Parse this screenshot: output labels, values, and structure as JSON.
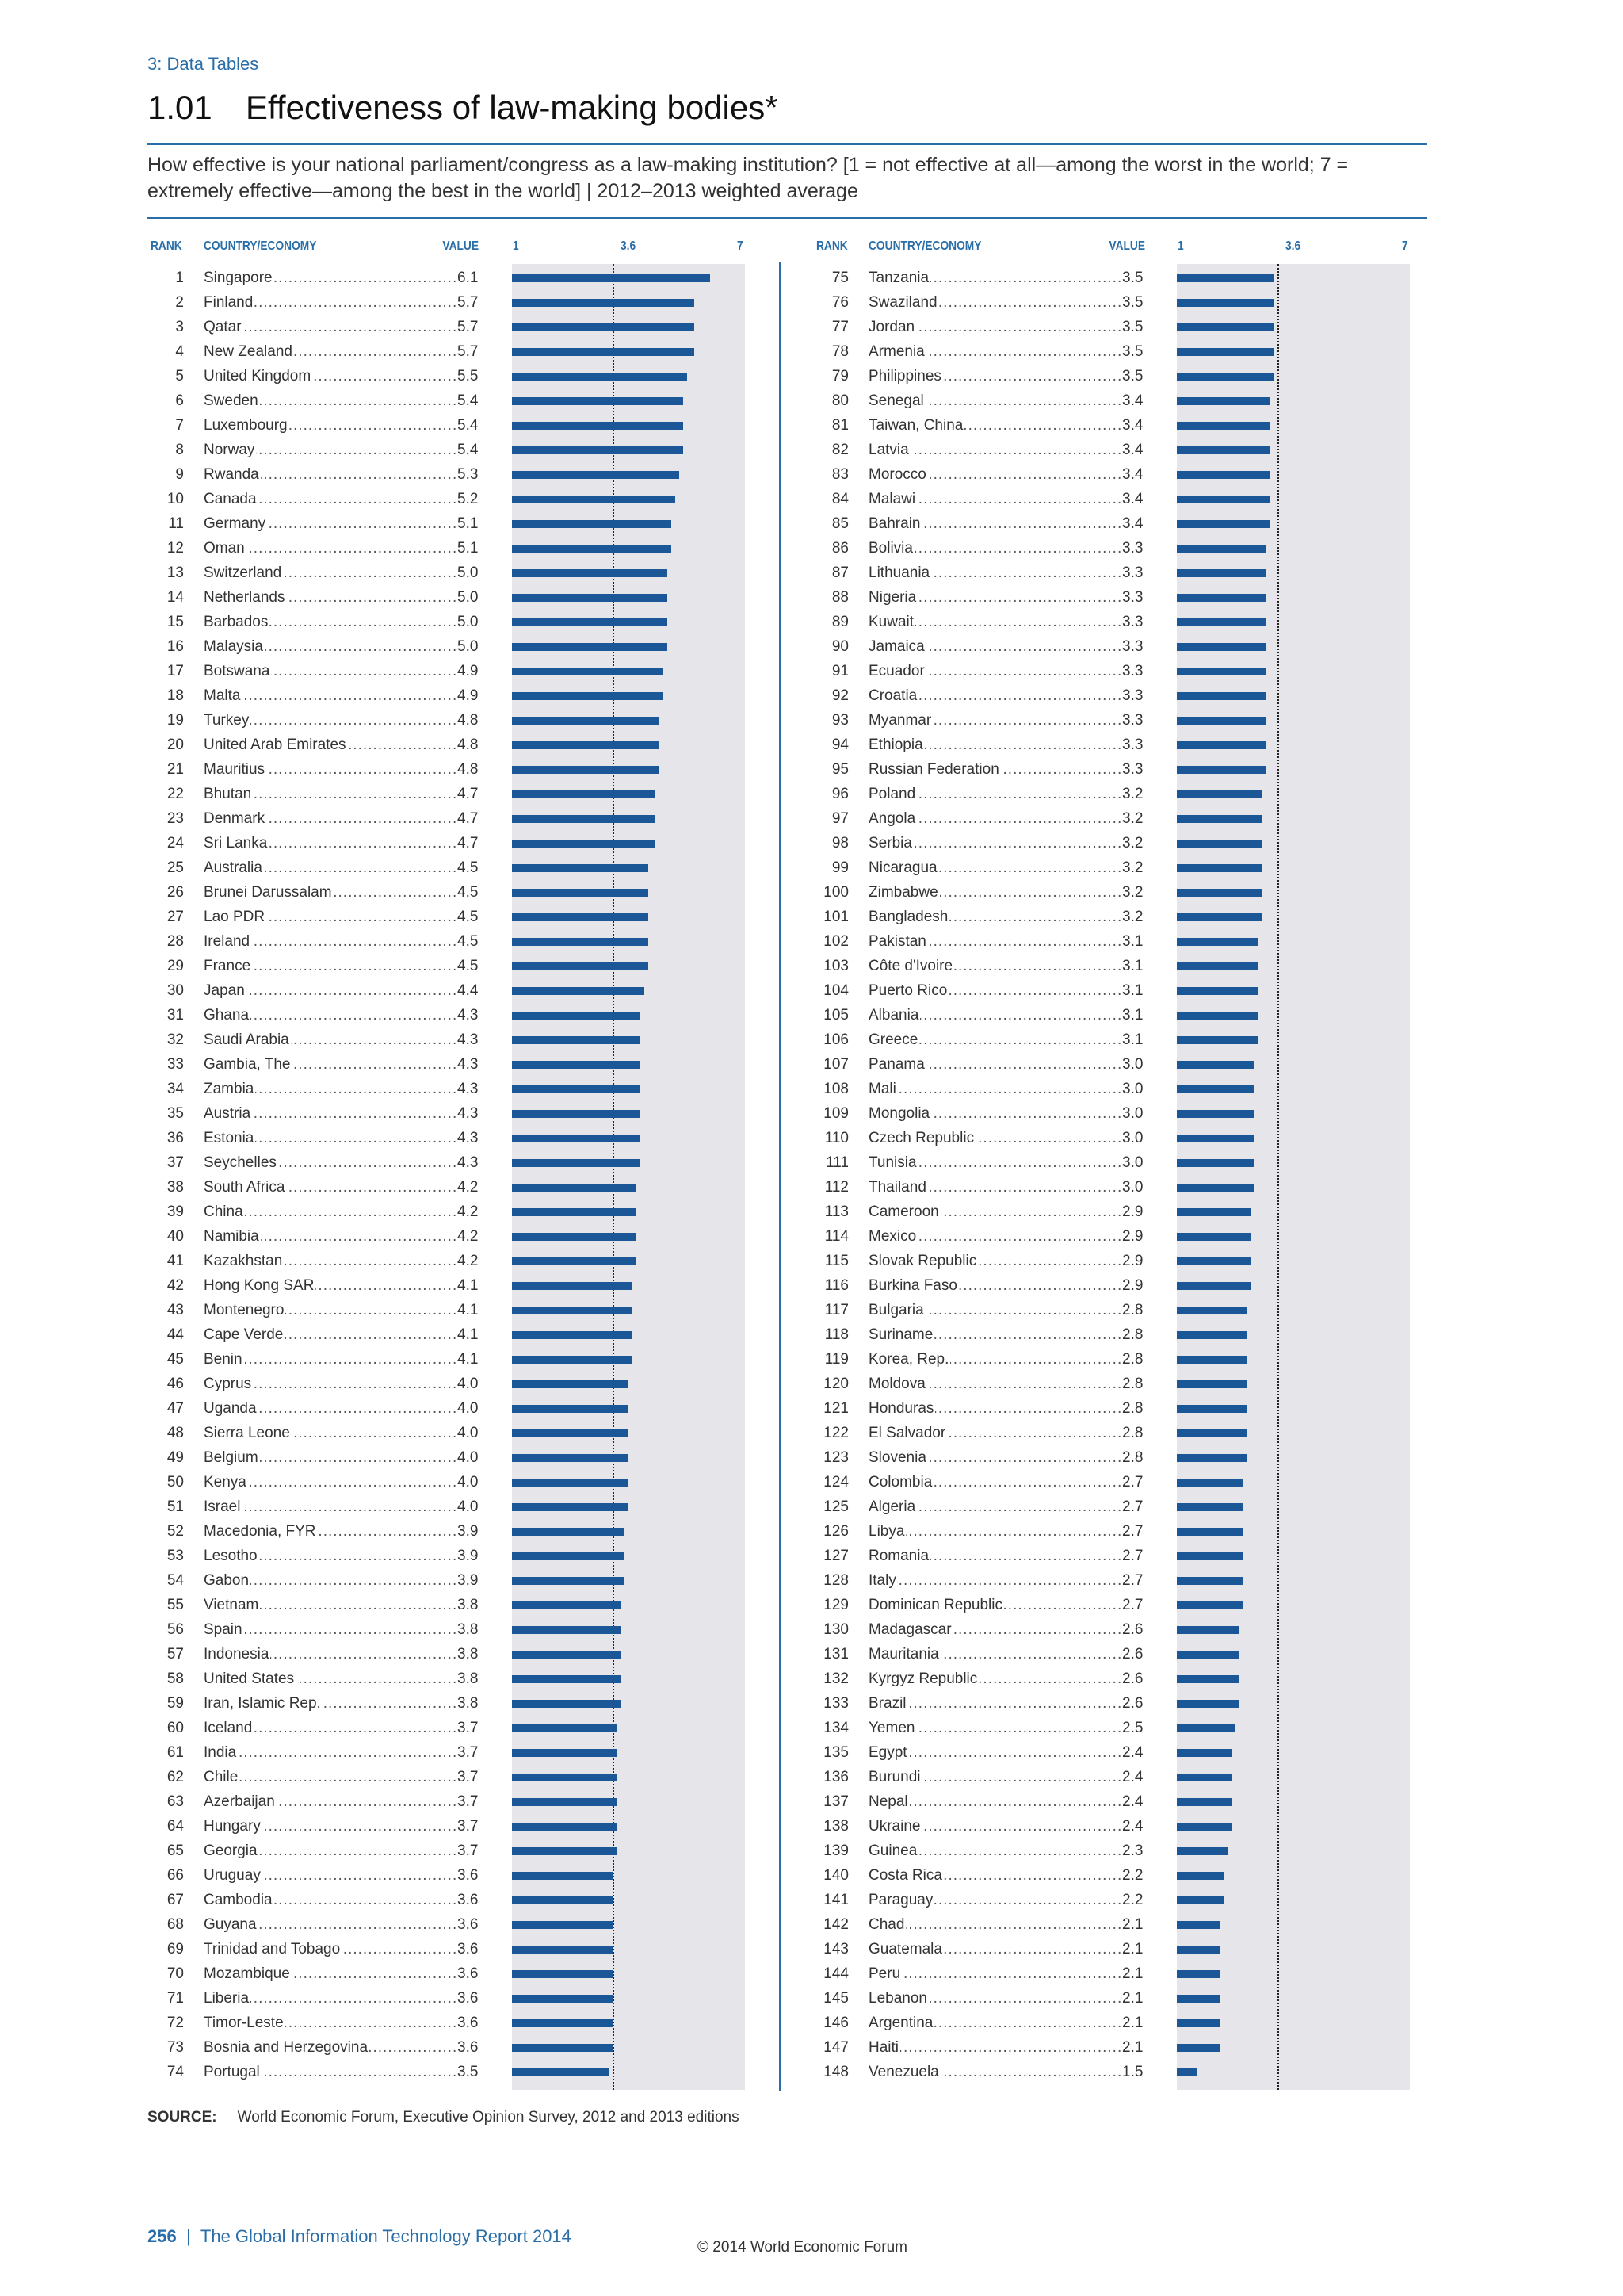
{
  "header": {
    "section": "3: Data Tables",
    "number": "1.01",
    "title": "Effectiveness of law-making bodies*",
    "question": "How effective is your national parliament/congress as a law-making institution? [1 = not effective at all—among the worst in the world; 7 = extremely effective—among the best in the world] | 2012–2013 weighted average"
  },
  "columns": {
    "rank": "RANK",
    "country": "COUNTRY/ECONOMY",
    "value": "VALUE",
    "scale_min": "1",
    "scale_mid": "3.6",
    "scale_max": "7"
  },
  "chart_data": {
    "type": "bar",
    "orientation": "horizontal",
    "xlim": [
      1,
      7
    ],
    "reference_value": 3.6,
    "colors": {
      "bar": "#1b5696",
      "panel": "#e6e6ea",
      "accent": "#2a6ea8"
    },
    "rows": [
      {
        "rank": "1",
        "country": "Singapore",
        "value": 6.1
      },
      {
        "rank": "2",
        "country": "Finland",
        "value": 5.7
      },
      {
        "rank": "3",
        "country": "Qatar",
        "value": 5.7
      },
      {
        "rank": "4",
        "country": "New Zealand",
        "value": 5.7
      },
      {
        "rank": "5",
        "country": "United Kingdom",
        "value": 5.5
      },
      {
        "rank": "6",
        "country": "Sweden",
        "value": 5.4
      },
      {
        "rank": "7",
        "country": "Luxembourg",
        "value": 5.4
      },
      {
        "rank": "8",
        "country": "Norway",
        "value": 5.4
      },
      {
        "rank": "9",
        "country": "Rwanda",
        "value": 5.3
      },
      {
        "rank": "10",
        "country": "Canada",
        "value": 5.2
      },
      {
        "rank": "11",
        "country": "Germany",
        "value": 5.1
      },
      {
        "rank": "12",
        "country": "Oman",
        "value": 5.1
      },
      {
        "rank": "13",
        "country": "Switzerland",
        "value": 5.0
      },
      {
        "rank": "14",
        "country": "Netherlands",
        "value": 5.0
      },
      {
        "rank": "15",
        "country": "Barbados",
        "value": 5.0
      },
      {
        "rank": "16",
        "country": "Malaysia",
        "value": 5.0
      },
      {
        "rank": "17",
        "country": "Botswana",
        "value": 4.9
      },
      {
        "rank": "18",
        "country": "Malta",
        "value": 4.9
      },
      {
        "rank": "19",
        "country": "Turkey",
        "value": 4.8
      },
      {
        "rank": "20",
        "country": "United Arab Emirates",
        "value": 4.8
      },
      {
        "rank": "21",
        "country": "Mauritius",
        "value": 4.8
      },
      {
        "rank": "22",
        "country": "Bhutan",
        "value": 4.7
      },
      {
        "rank": "23",
        "country": "Denmark",
        "value": 4.7
      },
      {
        "rank": "24",
        "country": "Sri Lanka",
        "value": 4.7
      },
      {
        "rank": "25",
        "country": "Australia",
        "value": 4.5
      },
      {
        "rank": "26",
        "country": "Brunei Darussalam",
        "value": 4.5
      },
      {
        "rank": "27",
        "country": "Lao PDR",
        "value": 4.5
      },
      {
        "rank": "28",
        "country": "Ireland",
        "value": 4.5
      },
      {
        "rank": "29",
        "country": "France",
        "value": 4.5
      },
      {
        "rank": "30",
        "country": "Japan",
        "value": 4.4
      },
      {
        "rank": "31",
        "country": "Ghana",
        "value": 4.3
      },
      {
        "rank": "32",
        "country": "Saudi Arabia",
        "value": 4.3
      },
      {
        "rank": "33",
        "country": "Gambia, The",
        "value": 4.3
      },
      {
        "rank": "34",
        "country": "Zambia",
        "value": 4.3
      },
      {
        "rank": "35",
        "country": "Austria",
        "value": 4.3
      },
      {
        "rank": "36",
        "country": "Estonia",
        "value": 4.3
      },
      {
        "rank": "37",
        "country": "Seychelles",
        "value": 4.3
      },
      {
        "rank": "38",
        "country": "South Africa",
        "value": 4.2
      },
      {
        "rank": "39",
        "country": "China",
        "value": 4.2
      },
      {
        "rank": "40",
        "country": "Namibia",
        "value": 4.2
      },
      {
        "rank": "41",
        "country": "Kazakhstan",
        "value": 4.2
      },
      {
        "rank": "42",
        "country": "Hong Kong SAR",
        "value": 4.1
      },
      {
        "rank": "43",
        "country": "Montenegro",
        "value": 4.1
      },
      {
        "rank": "44",
        "country": "Cape Verde",
        "value": 4.1
      },
      {
        "rank": "45",
        "country": "Benin",
        "value": 4.1
      },
      {
        "rank": "46",
        "country": "Cyprus",
        "value": 4.0
      },
      {
        "rank": "47",
        "country": "Uganda",
        "value": 4.0
      },
      {
        "rank": "48",
        "country": "Sierra Leone",
        "value": 4.0
      },
      {
        "rank": "49",
        "country": "Belgium",
        "value": 4.0
      },
      {
        "rank": "50",
        "country": "Kenya",
        "value": 4.0
      },
      {
        "rank": "51",
        "country": "Israel",
        "value": 4.0
      },
      {
        "rank": "52",
        "country": "Macedonia, FYR",
        "value": 3.9
      },
      {
        "rank": "53",
        "country": "Lesotho",
        "value": 3.9
      },
      {
        "rank": "54",
        "country": "Gabon",
        "value": 3.9
      },
      {
        "rank": "55",
        "country": "Vietnam",
        "value": 3.8
      },
      {
        "rank": "56",
        "country": "Spain",
        "value": 3.8
      },
      {
        "rank": "57",
        "country": "Indonesia",
        "value": 3.8
      },
      {
        "rank": "58",
        "country": "United States",
        "value": 3.8
      },
      {
        "rank": "59",
        "country": "Iran, Islamic Rep.",
        "value": 3.8
      },
      {
        "rank": "60",
        "country": "Iceland",
        "value": 3.7
      },
      {
        "rank": "61",
        "country": "India",
        "value": 3.7
      },
      {
        "rank": "62",
        "country": "Chile",
        "value": 3.7
      },
      {
        "rank": "63",
        "country": "Azerbaijan",
        "value": 3.7
      },
      {
        "rank": "64",
        "country": "Hungary",
        "value": 3.7
      },
      {
        "rank": "65",
        "country": "Georgia",
        "value": 3.7
      },
      {
        "rank": "66",
        "country": "Uruguay",
        "value": 3.6
      },
      {
        "rank": "67",
        "country": "Cambodia",
        "value": 3.6
      },
      {
        "rank": "68",
        "country": "Guyana",
        "value": 3.6
      },
      {
        "rank": "69",
        "country": "Trinidad and Tobago",
        "value": 3.6
      },
      {
        "rank": "70",
        "country": "Mozambique",
        "value": 3.6
      },
      {
        "rank": "71",
        "country": "Liberia",
        "value": 3.6
      },
      {
        "rank": "72",
        "country": "Timor-Leste",
        "value": 3.6
      },
      {
        "rank": "73",
        "country": "Bosnia and Herzegovina",
        "value": 3.6
      },
      {
        "rank": "74",
        "country": "Portugal",
        "value": 3.5
      },
      {
        "rank": "75",
        "country": "Tanzania",
        "value": 3.5
      },
      {
        "rank": "76",
        "country": "Swaziland",
        "value": 3.5
      },
      {
        "rank": "77",
        "country": "Jordan",
        "value": 3.5
      },
      {
        "rank": "78",
        "country": "Armenia",
        "value": 3.5
      },
      {
        "rank": "79",
        "country": "Philippines",
        "value": 3.5
      },
      {
        "rank": "80",
        "country": "Senegal",
        "value": 3.4
      },
      {
        "rank": "81",
        "country": "Taiwan, China",
        "value": 3.4
      },
      {
        "rank": "82",
        "country": "Latvia",
        "value": 3.4
      },
      {
        "rank": "83",
        "country": "Morocco",
        "value": 3.4
      },
      {
        "rank": "84",
        "country": "Malawi",
        "value": 3.4
      },
      {
        "rank": "85",
        "country": "Bahrain",
        "value": 3.4
      },
      {
        "rank": "86",
        "country": "Bolivia",
        "value": 3.3
      },
      {
        "rank": "87",
        "country": "Lithuania",
        "value": 3.3
      },
      {
        "rank": "88",
        "country": "Nigeria",
        "value": 3.3
      },
      {
        "rank": "89",
        "country": "Kuwait",
        "value": 3.3
      },
      {
        "rank": "90",
        "country": "Jamaica",
        "value": 3.3
      },
      {
        "rank": "91",
        "country": "Ecuador",
        "value": 3.3
      },
      {
        "rank": "92",
        "country": "Croatia",
        "value": 3.3
      },
      {
        "rank": "93",
        "country": "Myanmar",
        "value": 3.3
      },
      {
        "rank": "94",
        "country": "Ethiopia",
        "value": 3.3
      },
      {
        "rank": "95",
        "country": "Russian Federation",
        "value": 3.3
      },
      {
        "rank": "96",
        "country": "Poland",
        "value": 3.2
      },
      {
        "rank": "97",
        "country": "Angola",
        "value": 3.2
      },
      {
        "rank": "98",
        "country": "Serbia",
        "value": 3.2
      },
      {
        "rank": "99",
        "country": "Nicaragua",
        "value": 3.2
      },
      {
        "rank": "100",
        "country": "Zimbabwe",
        "value": 3.2
      },
      {
        "rank": "101",
        "country": "Bangladesh",
        "value": 3.2
      },
      {
        "rank": "102",
        "country": "Pakistan",
        "value": 3.1
      },
      {
        "rank": "103",
        "country": "Côte d'Ivoire",
        "value": 3.1
      },
      {
        "rank": "104",
        "country": "Puerto Rico",
        "value": 3.1
      },
      {
        "rank": "105",
        "country": "Albania",
        "value": 3.1
      },
      {
        "rank": "106",
        "country": "Greece",
        "value": 3.1
      },
      {
        "rank": "107",
        "country": "Panama",
        "value": 3.0
      },
      {
        "rank": "108",
        "country": "Mali",
        "value": 3.0
      },
      {
        "rank": "109",
        "country": "Mongolia",
        "value": 3.0
      },
      {
        "rank": "110",
        "country": "Czech Republic",
        "value": 3.0
      },
      {
        "rank": "111",
        "country": "Tunisia",
        "value": 3.0
      },
      {
        "rank": "112",
        "country": "Thailand",
        "value": 3.0
      },
      {
        "rank": "113",
        "country": "Cameroon",
        "value": 2.9
      },
      {
        "rank": "114",
        "country": "Mexico",
        "value": 2.9
      },
      {
        "rank": "115",
        "country": "Slovak Republic",
        "value": 2.9
      },
      {
        "rank": "116",
        "country": "Burkina Faso",
        "value": 2.9
      },
      {
        "rank": "117",
        "country": "Bulgaria",
        "value": 2.8
      },
      {
        "rank": "118",
        "country": "Suriname",
        "value": 2.8
      },
      {
        "rank": "119",
        "country": "Korea, Rep.",
        "value": 2.8
      },
      {
        "rank": "120",
        "country": "Moldova",
        "value": 2.8
      },
      {
        "rank": "121",
        "country": "Honduras",
        "value": 2.8
      },
      {
        "rank": "122",
        "country": "El Salvador",
        "value": 2.8
      },
      {
        "rank": "123",
        "country": "Slovenia",
        "value": 2.8
      },
      {
        "rank": "124",
        "country": "Colombia",
        "value": 2.7
      },
      {
        "rank": "125",
        "country": "Algeria",
        "value": 2.7
      },
      {
        "rank": "126",
        "country": "Libya",
        "value": 2.7
      },
      {
        "rank": "127",
        "country": "Romania",
        "value": 2.7
      },
      {
        "rank": "128",
        "country": "Italy",
        "value": 2.7
      },
      {
        "rank": "129",
        "country": "Dominican Republic",
        "value": 2.7
      },
      {
        "rank": "130",
        "country": "Madagascar",
        "value": 2.6
      },
      {
        "rank": "131",
        "country": "Mauritania",
        "value": 2.6
      },
      {
        "rank": "132",
        "country": "Kyrgyz Republic",
        "value": 2.6
      },
      {
        "rank": "133",
        "country": "Brazil",
        "value": 2.6
      },
      {
        "rank": "134",
        "country": "Yemen",
        "value": 2.5
      },
      {
        "rank": "135",
        "country": "Egypt",
        "value": 2.4
      },
      {
        "rank": "136",
        "country": "Burundi",
        "value": 2.4
      },
      {
        "rank": "137",
        "country": "Nepal",
        "value": 2.4
      },
      {
        "rank": "138",
        "country": "Ukraine",
        "value": 2.4
      },
      {
        "rank": "139",
        "country": "Guinea",
        "value": 2.3
      },
      {
        "rank": "140",
        "country": "Costa Rica",
        "value": 2.2
      },
      {
        "rank": "141",
        "country": "Paraguay",
        "value": 2.2
      },
      {
        "rank": "142",
        "country": "Chad",
        "value": 2.1
      },
      {
        "rank": "143",
        "country": "Guatemala",
        "value": 2.1
      },
      {
        "rank": "144",
        "country": "Peru",
        "value": 2.1
      },
      {
        "rank": "145",
        "country": "Lebanon",
        "value": 2.1
      },
      {
        "rank": "146",
        "country": "Argentina",
        "value": 2.1
      },
      {
        "rank": "147",
        "country": "Haiti",
        "value": 2.1
      },
      {
        "rank": "148",
        "country": "Venezuela",
        "value": 1.5
      }
    ]
  },
  "source": {
    "label": "SOURCE:",
    "text": "World Economic Forum, Executive Opinion Survey, 2012 and 2013 editions"
  },
  "footer": {
    "page_number": "256",
    "separator": "|",
    "report_title": "The Global Information Technology Report 2014",
    "copyright": "© 2014 World Economic Forum"
  }
}
